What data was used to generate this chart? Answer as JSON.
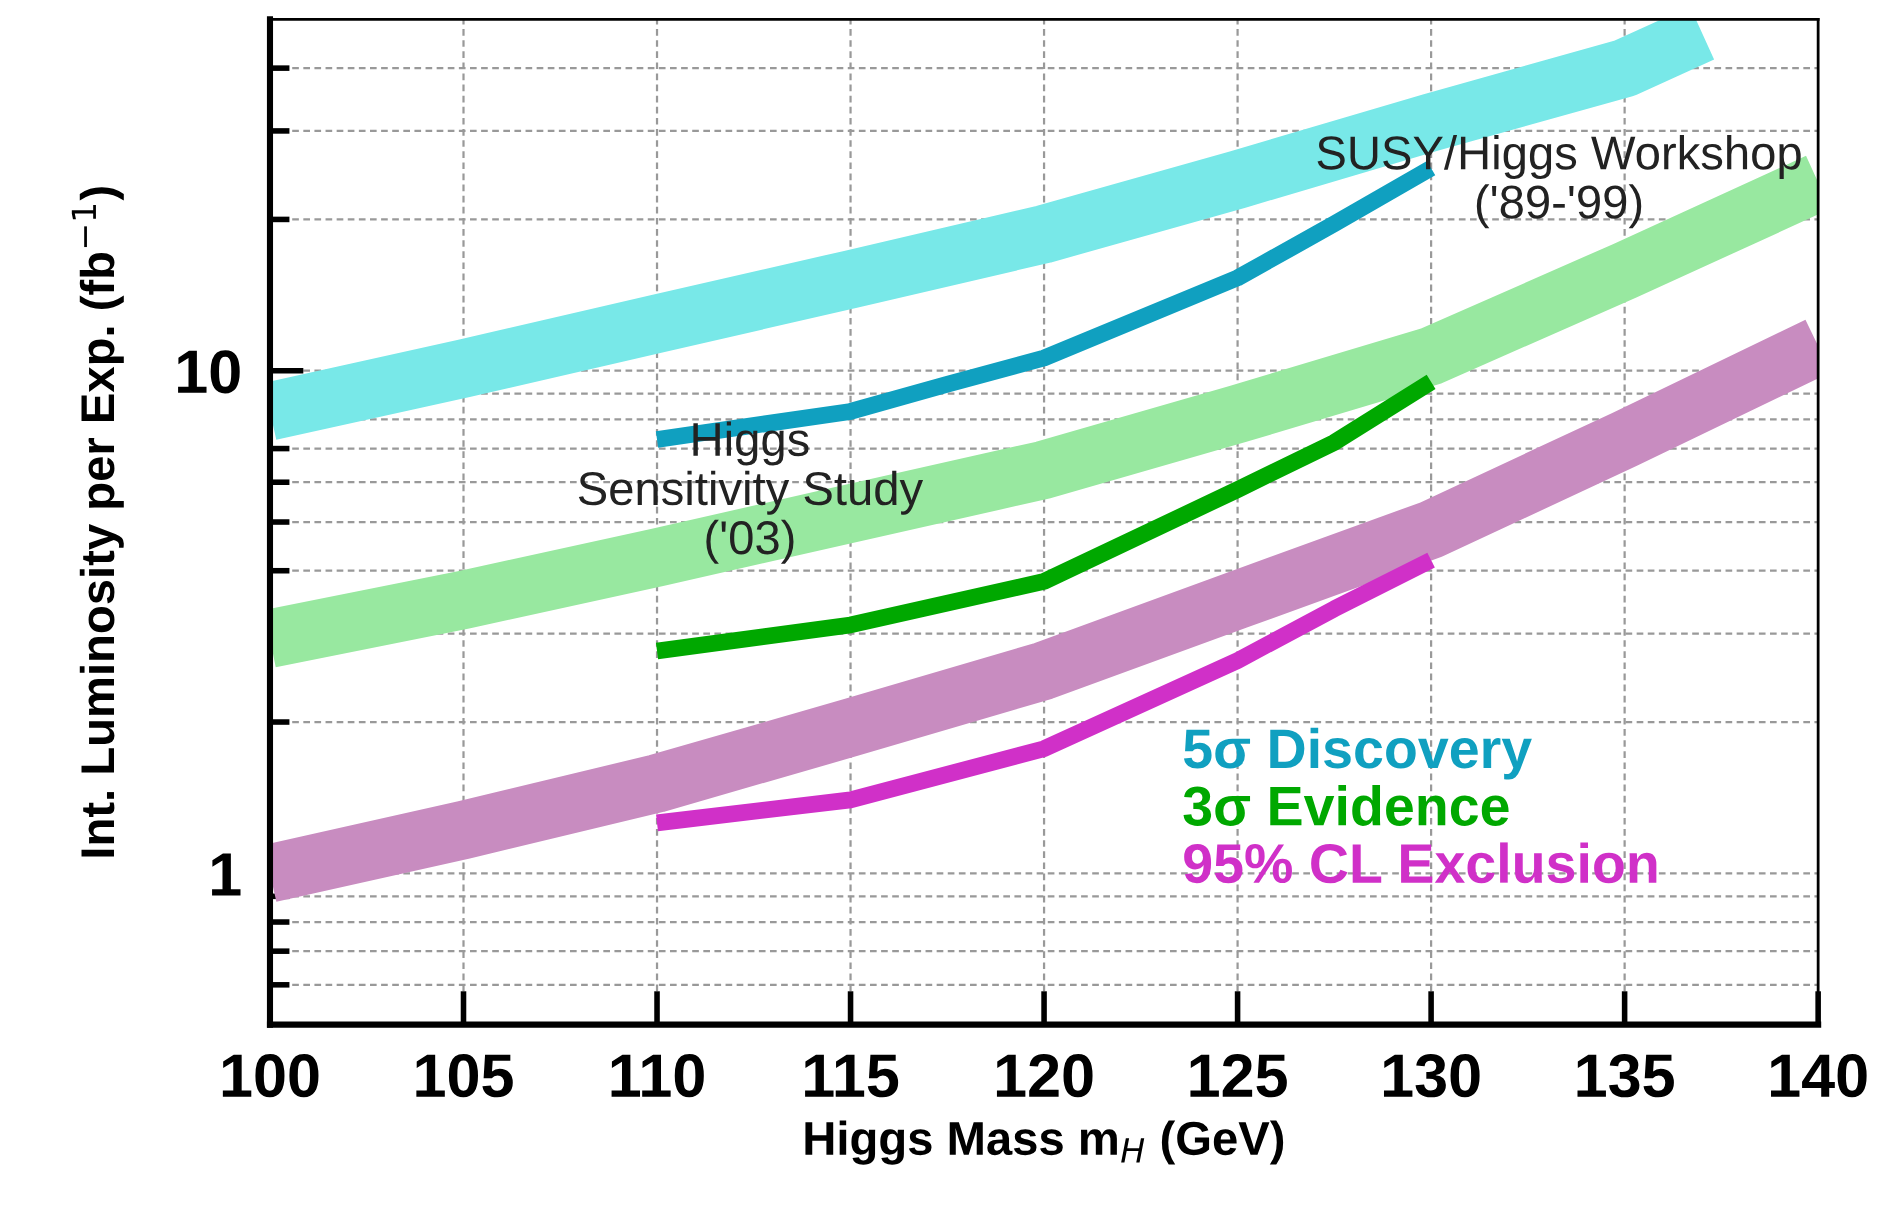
{
  "chart_data": {
    "type": "line",
    "xlabel": "Higgs Mass m$_{H}$ (GeV)",
    "ylabel": "Int. Luminosity per Exp. (fb$^{−1}$)",
    "annotations": [
      "SUSY/Higgs Workshop\n('89-'99)",
      "Higgs\nSensitivity Study\n('03)"
    ],
    "series": [
      {
        "color": "#78e8e8",
        "x": [
          100,
          105,
          110,
          115,
          120,
          125,
          130,
          135,
          137
        ],
        "values": [
          8.3,
          10.1,
          12.4,
          15.2,
          18.7,
          24,
          31.2,
          40,
          47
        ]
      },
      {
        "name": "5σ Discovery",
        "color": "#10a0c0",
        "x": [
          110,
          115,
          117.5,
          120,
          125,
          127.5,
          130
        ],
        "values": [
          7.3,
          8.3,
          9.4,
          10.6,
          15.3,
          19.6,
          25.3
        ]
      },
      {
        "color": "#98e8a0",
        "x": [
          100,
          105,
          110,
          115,
          120,
          125,
          130,
          135,
          140
        ],
        "values": [
          2.93,
          3.5,
          4.25,
          5.2,
          6.35,
          8.2,
          10.7,
          15.8,
          23.7
        ]
      },
      {
        "name": "3σ Evidence",
        "color": "#00a800",
        "x": [
          110,
          115,
          120,
          125,
          127.5,
          130
        ],
        "values": [
          2.77,
          3.12,
          3.81,
          5.8,
          7.2,
          9.5
        ]
      },
      {
        "color": "#c88cc0",
        "x": [
          100,
          105,
          110,
          115,
          120,
          125,
          130,
          135,
          140
        ],
        "values": [
          1.0,
          1.22,
          1.51,
          1.95,
          2.53,
          3.5,
          4.83,
          7.3,
          11.2
        ]
      },
      {
        "name": "95% CL Exclusion",
        "color": "#d030c8",
        "x": [
          110,
          115,
          120,
          125,
          127.5,
          130
        ],
        "values": [
          1.26,
          1.4,
          1.77,
          2.65,
          3.36,
          4.2
        ]
      }
    ],
    "log": "y",
    "xlim": [
      100,
      140
    ],
    "ylim": [
      0.5,
      50
    ],
    "xticks": [
      100,
      105,
      110,
      115,
      120,
      125,
      130,
      135,
      140
    ],
    "yticks": [
      {
        "value": 0.6,
        "label": null
      },
      {
        "value": 0.7,
        "label": null
      },
      {
        "value": 0.8,
        "label": null
      },
      {
        "value": 0.9,
        "label": null
      },
      1,
      {
        "value": 2,
        "label": null
      },
      {
        "value": 3,
        "label": null
      },
      {
        "value": 4,
        "label": null
      },
      {
        "value": 5,
        "label": null
      },
      {
        "value": 6,
        "label": null
      },
      {
        "value": 7,
        "label": null
      },
      {
        "value": 8,
        "label": null
      },
      {
        "value": 9,
        "label": null
      },
      10,
      {
        "value": 20,
        "label": null
      },
      {
        "value": 30,
        "label": null
      },
      {
        "value": 40,
        "label": null
      }
    ],
    "grid": true,
    "legend": "bottom right",
    "line_style": "solid"
  }
}
